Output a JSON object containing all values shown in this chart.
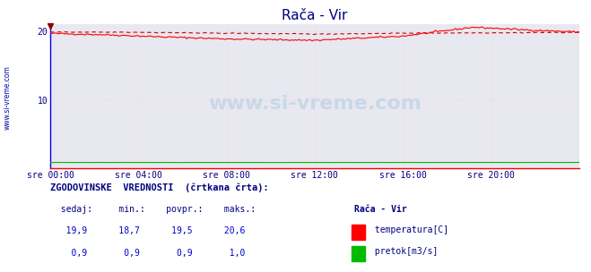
{
  "title": "Rača - Vir",
  "title_color": "#000080",
  "bg_color": "#ffffff",
  "plot_bg_color": "#e8e8f0",
  "grid_color": "#ffcccc",
  "left_spine_color": "#0000ff",
  "bottom_spine_color": "#ff0000",
  "xlabel_color": "#000080",
  "ylabel_color": "#000080",
  "watermark": "www.si-vreme.com",
  "watermark_color": "#c8d8e8",
  "xlim": [
    0,
    288
  ],
  "ylim": [
    0,
    21
  ],
  "yticks": [
    10,
    20
  ],
  "xtick_labels": [
    "sre 00:00",
    "sre 04:00",
    "sre 08:00",
    "sre 12:00",
    "sre 16:00",
    "sre 20:00"
  ],
  "xtick_positions": [
    0,
    48,
    96,
    144,
    192,
    240
  ],
  "temp_color": "#ff0000",
  "temp_dashed_color": "#cc0000",
  "flow_color": "#00bb00",
  "footer_text_color": "#000080",
  "footer_value_color": "#0000cc",
  "left_side_label": "www.si-vreme.com",
  "left_side_color": "#0000aa"
}
